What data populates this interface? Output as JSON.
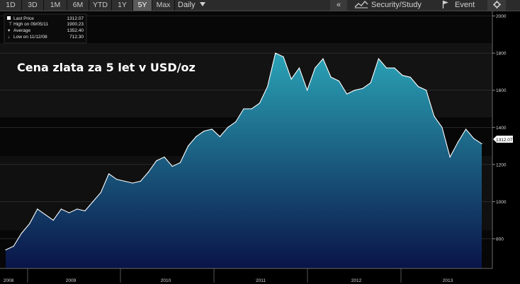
{
  "toolbar": {
    "ranges": [
      "1D",
      "3D",
      "1M",
      "6M",
      "YTD",
      "1Y",
      "5Y",
      "Max"
    ],
    "active_range": "5Y",
    "frequency": "Daily",
    "collapse_label": "«",
    "security_label": "Security/Study",
    "event_label": "Event",
    "settings_icon": "gear-icon"
  },
  "legend": {
    "last_price_label": "Last Price",
    "last_price_value": "1312.07",
    "high_label": "High on 09/05/11",
    "high_value": "1900.23",
    "average_label": "Average",
    "average_value": "1352.40",
    "low_label": "Low on 11/12/08",
    "low_value": "712.30"
  },
  "title": "Cena zlata za 5 let v USD/oz",
  "colors": {
    "line": "#ffffff",
    "fill_top": "#2aa3b6",
    "fill_bottom": "#0a1448",
    "grid": "#3a3a3a"
  },
  "chart_data": {
    "type": "area",
    "y_ticks": [
      "2000",
      "1800",
      "1600",
      "1400",
      "1200",
      "1000",
      "800"
    ],
    "ylim": [
      640,
      2010
    ],
    "x_labels": [
      "2008",
      "2009",
      "2010",
      "2011",
      "2012",
      "2013"
    ],
    "last_value_label": "1312.07",
    "x": [
      "2008-10",
      "2008-11",
      "2008-12",
      "2009-01",
      "2009-02",
      "2009-03",
      "2009-04",
      "2009-05",
      "2009-06",
      "2009-07",
      "2009-08",
      "2009-09",
      "2009-10",
      "2009-11",
      "2009-12",
      "2010-01",
      "2010-02",
      "2010-03",
      "2010-04",
      "2010-05",
      "2010-06",
      "2010-07",
      "2010-08",
      "2010-09",
      "2010-10",
      "2010-11",
      "2010-12",
      "2011-01",
      "2011-02",
      "2011-03",
      "2011-04",
      "2011-05",
      "2011-06",
      "2011-07",
      "2011-08",
      "2011-09",
      "2011-10",
      "2011-11",
      "2011-12",
      "2012-01",
      "2012-02",
      "2012-03",
      "2012-04",
      "2012-05",
      "2012-06",
      "2012-07",
      "2012-08",
      "2012-09",
      "2012-10",
      "2012-11",
      "2012-12",
      "2013-01",
      "2013-02",
      "2013-03",
      "2013-04",
      "2013-05",
      "2013-06",
      "2013-07",
      "2013-08",
      "2013-09",
      "2013-10"
    ],
    "values": [
      740,
      760,
      830,
      880,
      960,
      930,
      900,
      960,
      940,
      960,
      950,
      1000,
      1050,
      1150,
      1120,
      1110,
      1100,
      1110,
      1160,
      1220,
      1240,
      1190,
      1210,
      1300,
      1350,
      1380,
      1390,
      1350,
      1400,
      1430,
      1500,
      1500,
      1530,
      1620,
      1800,
      1780,
      1660,
      1720,
      1600,
      1720,
      1770,
      1670,
      1650,
      1580,
      1600,
      1610,
      1640,
      1770,
      1720,
      1720,
      1680,
      1670,
      1620,
      1600,
      1460,
      1400,
      1240,
      1320,
      1390,
      1340,
      1312
    ]
  }
}
